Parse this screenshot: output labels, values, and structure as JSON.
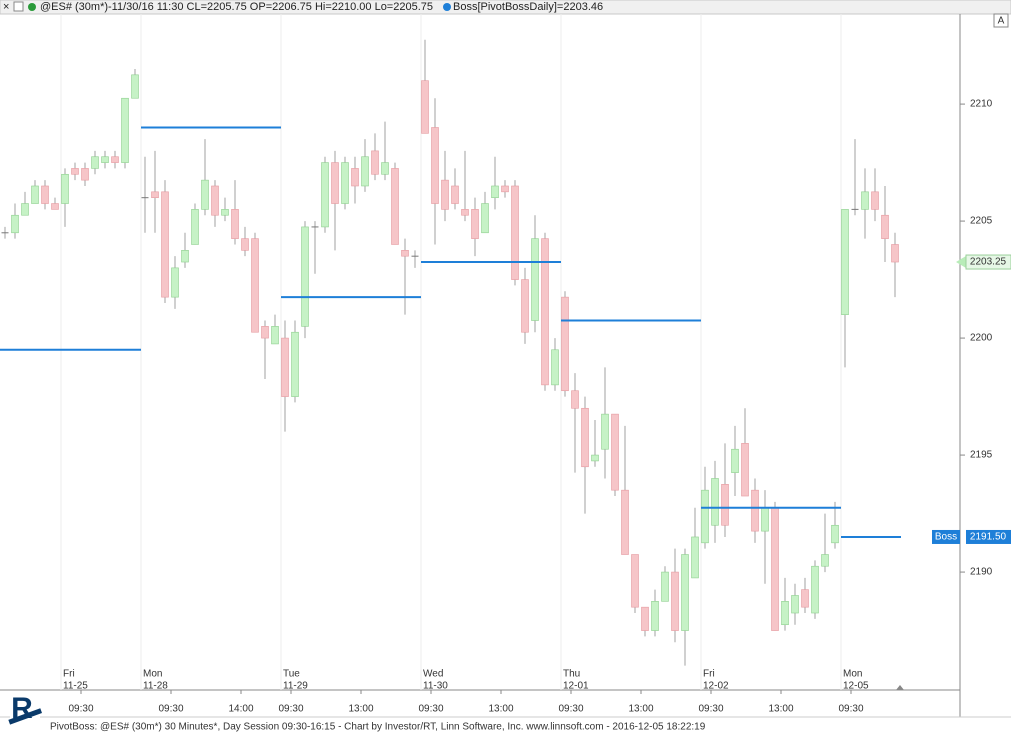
{
  "header": {
    "symbol_text": "@ES# (30m*)-11/30/16 11:30 CL=2205.75 OP=2206.75 Hi=2210.00 Lo=2205.75",
    "indicator_text": "Boss[PivotBossDaily]=2203.46",
    "button": "A"
  },
  "footer": "PivotBoss: @ES# (30m*) 30 Minutes*, Day Session 09:30-16:15 - Chart by Investor/RT, Linn Software, Inc. www.linnsoft.com - 2016-12-05 18:22:19",
  "chart_data": {
    "type": "candlestick",
    "categories": [
      null,
      null,
      null,
      null,
      null,
      null,
      null,
      null,
      "09:30",
      null,
      null,
      null,
      null,
      null,
      null,
      null,
      null,
      "09:30",
      null,
      null,
      null,
      null,
      null,
      null,
      "14:00",
      null,
      null,
      null,
      null,
      "09:30",
      null,
      null,
      null,
      null,
      null,
      null,
      "13:00",
      null,
      null,
      null,
      null,
      null,
      null,
      "09:30",
      null,
      null,
      null,
      null,
      null,
      null,
      "13:00",
      null,
      null,
      null,
      null,
      null,
      null,
      "09:30",
      null,
      null,
      null,
      null,
      null,
      null,
      "13:00",
      null,
      null,
      null,
      null,
      null,
      null,
      "09:30",
      null,
      null,
      null,
      null,
      null,
      null,
      "13:00",
      null,
      null,
      null,
      null,
      null,
      null,
      "09:30",
      null,
      null,
      null,
      null
    ],
    "day_labels": [
      null,
      null,
      null,
      null,
      null,
      null,
      {
        "day": "Fri",
        "date": "11-25"
      },
      null,
      null,
      null,
      null,
      null,
      null,
      null,
      {
        "day": "Mon",
        "date": "11-28"
      },
      null,
      null,
      null,
      null,
      null,
      null,
      null,
      null,
      null,
      null,
      null,
      null,
      null,
      {
        "day": "Tue",
        "date": "11-29"
      },
      null,
      null,
      null,
      null,
      null,
      null,
      null,
      null,
      null,
      null,
      null,
      null,
      null,
      {
        "day": "Wed",
        "date": "11-30"
      },
      null,
      null,
      null,
      null,
      null,
      null,
      null,
      null,
      null,
      null,
      null,
      null,
      null,
      {
        "day": "Thu",
        "date": "12-01"
      },
      null,
      null,
      null,
      null,
      null,
      null,
      null,
      null,
      null,
      null,
      null,
      null,
      null,
      {
        "day": "Fri",
        "date": "12-02"
      },
      null,
      null,
      null,
      null,
      null,
      null,
      null,
      null,
      null,
      null,
      null,
      null,
      null,
      {
        "day": "Mon",
        "date": "12-05"
      },
      null,
      null,
      null,
      null,
      null
    ],
    "open": [
      2204.5,
      2204.5,
      2205.25,
      2205.75,
      2206.5,
      2205.75,
      2205.75,
      2207.25,
      2207.25,
      2207.25,
      2207.5,
      2207.75,
      2207.5,
      2210.25,
      2206,
      2206.25,
      2206.25,
      2201.75,
      2203.25,
      2204,
      2205.5,
      2206.5,
      2205.25,
      2205.5,
      2204.25,
      2204.25,
      2200.5,
      2199.75,
      2200,
      2197.5,
      2200.5,
      2204.75,
      2204.75,
      2207.5,
      2205.75,
      2207.25,
      2206.5,
      2208,
      2207,
      2207.25,
      2203.75,
      2203.5,
      2211,
      2209,
      2206.75,
      2206.5,
      2205.5,
      2205.5,
      2204.5,
      2206,
      2206.5,
      2206.5,
      2202.5,
      2200.75,
      2204.25,
      2198,
      2201.75,
      2197.75,
      2197,
      2194.75,
      2195.25,
      2196.75,
      2193.5,
      2190.75,
      2188.5,
      2187.5,
      2188.75,
      2190,
      2187.5,
      2189.75,
      2191.25,
      2192,
      2193.75,
      2194.25,
      2195.5,
      2193.5,
      2191.75,
      2192.75,
      2187.75,
      2188.25,
      2189.25,
      2188.25,
      2190.25,
      2191.25,
      2201,
      2205.5,
      2205.5,
      2206.25,
      2205.25,
      2204
    ],
    "high": [
      2204.75,
      2205.75,
      2206.25,
      2206.75,
      2206.75,
      2206,
      2207.25,
      2207.5,
      2207.5,
      2208,
      2208,
      2208,
      2210.25,
      2211.5,
      2207.75,
      2208,
      2206.75,
      2203.5,
      2204.5,
      2205.75,
      2208.5,
      2206.75,
      2206,
      2206.75,
      2204.75,
      2204.5,
      2200.75,
      2201,
      2200.75,
      2200.75,
      2205,
      2205,
      2207.75,
      2208,
      2207.75,
      2207.75,
      2208.5,
      2208.75,
      2209.25,
      2207.5,
      2204.25,
      2203.75,
      2212.75,
      2210.25,
      2208,
      2207.25,
      2208,
      2206,
      2206.25,
      2207.75,
      2206.75,
      2206.75,
      2203,
      2205.25,
      2204.5,
      2200,
      2202,
      2198.5,
      2197.5,
      2196.5,
      2198.75,
      2196.75,
      2196.25,
      2190.75,
      2188.5,
      2189.25,
      2190.25,
      2191,
      2191,
      2192.75,
      2194.5,
      2194.75,
      2195.5,
      2196.25,
      2197,
      2194,
      2193.5,
      2193,
      2189.75,
      2189.5,
      2189.75,
      2190.5,
      2192.5,
      2193,
      2205.5,
      2208.5,
      2207.25,
      2207.25,
      2206.5,
      2204.5
    ],
    "low": [
      2204.25,
      2204.25,
      2205.25,
      2205.75,
      2205.5,
      2205.5,
      2204.75,
      2206.75,
      2206.5,
      2207,
      2207.25,
      2207.25,
      2207.25,
      2210.25,
      2204.5,
      2204.5,
      2201.5,
      2201.25,
      2203,
      2204,
      2205.25,
      2204.75,
      2205,
      2204,
      2203.5,
      2200.25,
      2198.25,
      2199.75,
      2196,
      2197.25,
      2200,
      2202.75,
      2204.5,
      2203.75,
      2205.5,
      2205.75,
      2206.25,
      2206.75,
      2206.75,
      2204,
      2201,
      2203,
      2208.75,
      2204,
      2205,
      2205.5,
      2205,
      2203.5,
      2204.5,
      2205.5,
      2206,
      2202.25,
      2199.75,
      2200.25,
      2197.75,
      2197.75,
      2197.5,
      2194.25,
      2192.5,
      2194.5,
      2194,
      2193.25,
      2190.75,
      2188.25,
      2187.25,
      2187.25,
      2188.75,
      2187,
      2186,
      2189.75,
      2191,
      2191.25,
      2191.5,
      2193.25,
      2193.25,
      2191.25,
      2189.5,
      2187.5,
      2187.5,
      2187.75,
      2188.25,
      2188,
      2190,
      2191,
      2198.75,
      2205.25,
      2204.25,
      2205,
      2203.25,
      2201.75
    ],
    "close": [
      2204.5,
      2205.25,
      2205.75,
      2206.5,
      2205.75,
      2205.5,
      2207,
      2207,
      2206.75,
      2207.75,
      2207.75,
      2207.5,
      2210.25,
      2211.25,
      2206,
      2206,
      2201.75,
      2203,
      2203.75,
      2205.5,
      2206.75,
      2205.25,
      2205.5,
      2204.25,
      2203.75,
      2200.25,
      2200,
      2200.5,
      2197.5,
      2200.25,
      2204.75,
      2204.75,
      2207.5,
      2205.75,
      2207.5,
      2206.5,
      2207.75,
      2207,
      2207.5,
      2204,
      2203.5,
      2203.5,
      2208.75,
      2205.75,
      2205.5,
      2205.75,
      2205.25,
      2204.25,
      2205.75,
      2206.5,
      2206.25,
      2202.5,
      2200.25,
      2204.25,
      2198,
      2199.5,
      2197.75,
      2197,
      2194.5,
      2195,
      2196.75,
      2193.5,
      2190.75,
      2188.5,
      2187.5,
      2188.75,
      2190,
      2187.5,
      2190.75,
      2191.5,
      2193.5,
      2194,
      2192,
      2195.25,
      2193.25,
      2191.75,
      2192.75,
      2187.5,
      2188.75,
      2189,
      2188.5,
      2190.25,
      2190.75,
      2192,
      2205.5,
      2205.5,
      2206.25,
      2205.5,
      2204.25,
      2203.25
    ],
    "up_color": "#c6f2c6",
    "down_color": "#f6c5c8",
    "boss_name": "Boss",
    "boss_color": "#1e7fd8",
    "boss_levels": [
      2199.5,
      2209,
      2201.75,
      2203.25,
      2200.75,
      2192.75,
      2191.5
    ],
    "boss_value_label": "2191.50",
    "ylim": [
      2184.96,
      2213.85
    ],
    "yticks": [
      2190,
      2195,
      2200,
      2205,
      2210
    ]
  }
}
